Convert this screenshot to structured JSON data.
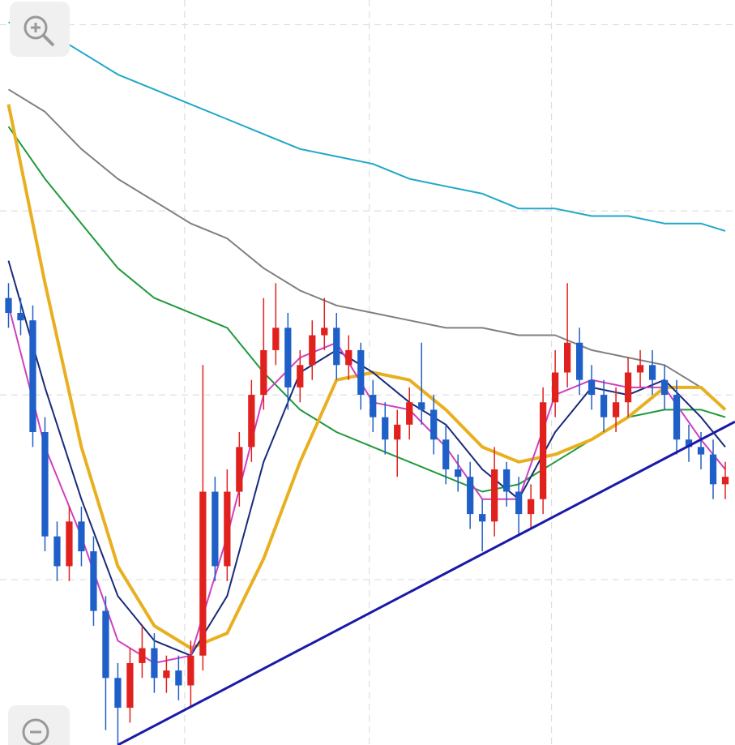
{
  "chart_data": {
    "type": "candlestick",
    "open": [
      60,
      58,
      57,
      42,
      28,
      24,
      30,
      26,
      18,
      9,
      5,
      11,
      13,
      9,
      10,
      8,
      12,
      34,
      24,
      34,
      40,
      47,
      53,
      56,
      48,
      51,
      55,
      56,
      51,
      53,
      47,
      44,
      41,
      43,
      46,
      45,
      41,
      37,
      36,
      31,
      30,
      37,
      34,
      31,
      33,
      46,
      50,
      54,
      49,
      47,
      44,
      46,
      50,
      51,
      49,
      47,
      41,
      40,
      39,
      35
    ],
    "high": [
      62,
      60,
      59,
      44,
      30,
      32,
      32,
      28,
      20,
      11,
      13,
      16,
      15,
      12,
      12,
      14,
      51,
      36,
      37,
      42,
      49,
      60,
      62,
      58,
      53,
      57,
      60,
      58,
      55,
      54,
      49,
      46,
      45,
      48,
      54,
      47,
      43,
      39,
      38,
      33,
      40,
      38,
      36,
      35,
      48,
      53,
      62,
      56,
      51,
      49,
      48,
      52,
      53,
      53,
      51,
      49,
      43,
      42,
      41,
      38
    ],
    "low": [
      56,
      55,
      40,
      26,
      22,
      22,
      24,
      16,
      2,
      0,
      3,
      9,
      7,
      7,
      6,
      5,
      10,
      22,
      22,
      32,
      38,
      45,
      51,
      45,
      46,
      49,
      53,
      49,
      49,
      45,
      42,
      39,
      36,
      41,
      43,
      39,
      35,
      34,
      29,
      26,
      28,
      32,
      28,
      29,
      31,
      44,
      48,
      47,
      45,
      42,
      42,
      44,
      48,
      47,
      45,
      39,
      38,
      37,
      33,
      33
    ],
    "close": [
      58,
      57,
      42,
      28,
      24,
      30,
      26,
      18,
      9,
      5,
      11,
      13,
      9,
      10,
      8,
      12,
      34,
      24,
      34,
      40,
      47,
      53,
      56,
      48,
      51,
      55,
      56,
      51,
      53,
      47,
      44,
      41,
      43,
      46,
      45,
      41,
      37,
      36,
      31,
      30,
      37,
      34,
      31,
      33,
      46,
      50,
      54,
      49,
      47,
      44,
      46,
      50,
      51,
      49,
      47,
      41,
      40,
      39,
      35,
      36
    ],
    "up_color": "#e0211d",
    "down_color": "#1f5fc8",
    "xlim": [
      -0.7,
      59.8
    ],
    "xticks": [
      14.5,
      29.7,
      44.7
    ],
    "ylim": [
      0,
      100
    ],
    "yticks": [
      22.2,
      47,
      71.7,
      96.7
    ],
    "grid": true,
    "lines": [
      {
        "color": "#20a8c8",
        "width": 2,
        "x": [
          0,
          3,
          6,
          9,
          12,
          15,
          18,
          21,
          24,
          27,
          30,
          33,
          36,
          39,
          42,
          45,
          48,
          51,
          54,
          57,
          59
        ],
        "values": [
          97,
          96,
          93,
          90,
          88,
          86,
          84,
          82,
          80,
          79,
          78,
          76,
          75,
          74,
          72,
          72,
          71,
          71,
          70,
          70,
          69
        ]
      },
      {
        "color": "#808080",
        "width": 2,
        "x": [
          0,
          3,
          6,
          9,
          12,
          15,
          18,
          21,
          24,
          27,
          30,
          33,
          36,
          39,
          42,
          45,
          48,
          51,
          54,
          57,
          59
        ],
        "values": [
          88,
          85,
          80,
          76,
          73,
          70,
          68,
          64,
          61,
          59,
          58,
          57,
          56,
          56,
          55,
          55,
          53,
          52,
          51,
          48,
          45
        ]
      },
      {
        "color": "#1e9a3a",
        "width": 2,
        "x": [
          0,
          3,
          6,
          9,
          12,
          15,
          18,
          21,
          24,
          27,
          30,
          33,
          36,
          39,
          42,
          45,
          48,
          51,
          54,
          57,
          59
        ],
        "values": [
          83,
          76,
          70,
          64,
          60,
          58,
          56,
          50,
          45,
          42,
          40,
          38,
          36,
          34,
          35,
          38,
          41,
          44,
          45,
          45,
          44
        ]
      },
      {
        "color": "#e8b020",
        "width": 4,
        "x": [
          0,
          3,
          6,
          9,
          12,
          15,
          18,
          21,
          24,
          27,
          30,
          33,
          36,
          39,
          42,
          45,
          48,
          51,
          54,
          57,
          59
        ],
        "values": [
          86,
          62,
          40,
          24,
          16,
          13,
          15,
          25,
          38,
          49,
          50,
          49,
          45,
          40,
          38,
          39,
          41,
          44,
          48,
          48,
          45
        ]
      },
      {
        "color": "#1a2a7a",
        "width": 2,
        "x": [
          0,
          3,
          6,
          9,
          12,
          15,
          18,
          21,
          24,
          27,
          30,
          33,
          36,
          39,
          42,
          45,
          48,
          51,
          54,
          57,
          59
        ],
        "values": [
          65,
          48,
          33,
          20,
          14,
          12,
          20,
          38,
          50,
          53,
          50,
          46,
          43,
          37,
          33,
          42,
          48,
          47,
          49,
          44,
          40
        ]
      },
      {
        "color": "#d040c0",
        "width": 2,
        "x": [
          0,
          3,
          6,
          9,
          12,
          15,
          18,
          21,
          24,
          27,
          30,
          33,
          36,
          39,
          42,
          45,
          48,
          51,
          54,
          57,
          59
        ],
        "values": [
          59,
          40,
          28,
          14,
          11,
          12,
          28,
          47,
          52,
          54,
          46,
          45,
          40,
          33,
          33,
          47,
          49,
          48,
          48,
          41,
          37
        ]
      },
      {
        "color": "#1a1aa8",
        "width": 3,
        "x": [
          9,
          59.8
        ],
        "values": [
          0,
          43.4
        ]
      }
    ]
  }
}
